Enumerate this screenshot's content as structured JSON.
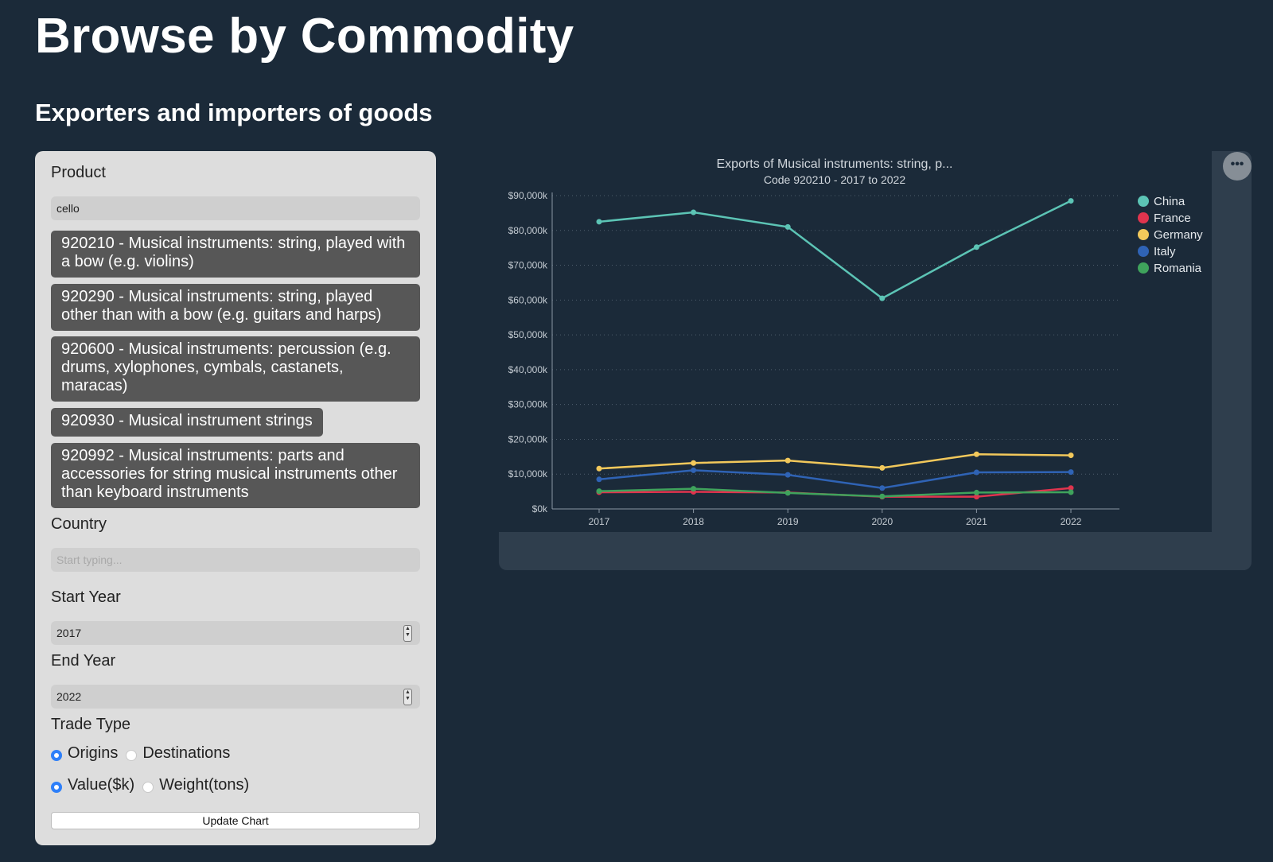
{
  "page": {
    "title": "Browse by Commodity",
    "subtitle": "Exporters and importers of goods"
  },
  "form": {
    "product_label": "Product",
    "product_value": "cello",
    "suggestions": [
      "920210 - Musical instruments: string, played with a bow (e.g. violins)",
      "920290 - Musical instruments: string, played other than with a bow (e.g. guitars and harps)",
      "920600 - Musical instruments: percussion (e.g. drums, xylophones, cymbals, castanets, maracas)",
      "920930 - Musical instrument strings",
      "920992 - Musical instruments: parts and accessories for string musical instruments other than keyboard instruments"
    ],
    "country_label": "Country",
    "country_placeholder": "Start typing...",
    "start_year_label": "Start Year",
    "start_year_value": "2017",
    "end_year_label": "End Year",
    "end_year_value": "2022",
    "trade_type_label": "Trade Type",
    "origins_label": "Origins",
    "destinations_label": "Destinations",
    "value_label": "Value($k)",
    "weight_label": "Weight(tons)",
    "selected_trade": "Origins",
    "selected_measure": "Value($k)",
    "update_button": "Update Chart",
    "accent_color": "#2d7ff9"
  },
  "chart_menu_icon": "ellipsis-icon",
  "chart_data": {
    "type": "line",
    "title": "Exports of Musical instruments: string, p...",
    "subtitle": "Code 920210 - 2017 to 2022",
    "x": [
      "2017",
      "2018",
      "2019",
      "2020",
      "2021",
      "2022"
    ],
    "ylim": [
      0,
      90000
    ],
    "yticks": [
      "$0k",
      "$10,000k",
      "$20,000k",
      "$30,000k",
      "$40,000k",
      "$50,000k",
      "$60,000k",
      "$70,000k",
      "$80,000k",
      "$90,000k"
    ],
    "legend_position": "right",
    "grid": "horizontal dotted",
    "series": [
      {
        "name": "China",
        "color": "#5cc4b5",
        "values": [
          82500,
          85200,
          81000,
          60500,
          75200,
          88500
        ]
      },
      {
        "name": "France",
        "color": "#e0344e",
        "values": [
          4800,
          4900,
          4700,
          3500,
          3500,
          6000
        ]
      },
      {
        "name": "Germany",
        "color": "#f2c85b",
        "values": [
          11600,
          13200,
          13900,
          11800,
          15700,
          15400
        ]
      },
      {
        "name": "Italy",
        "color": "#2f63b5",
        "values": [
          8500,
          11100,
          9800,
          6000,
          10500,
          10600
        ]
      },
      {
        "name": "Romania",
        "color": "#3fa35c",
        "values": [
          5100,
          5800,
          4600,
          3600,
          4700,
          4800
        ]
      }
    ]
  }
}
